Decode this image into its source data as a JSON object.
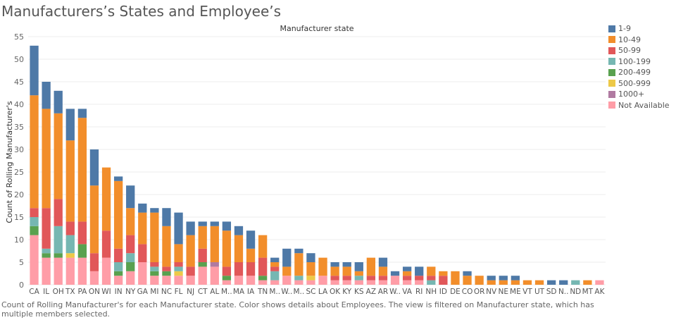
{
  "title": "Manufacturers’s States and Employee’s",
  "caption": "Count of Rolling Manufacturer's for each Manufacturer state.  Color shows details about Employees. The view is filtered on Manufacturer state, which has multiple members selected.",
  "chart_data": {
    "type": "bar",
    "stacked": true,
    "title": "Manufacturer state",
    "xlabel": "",
    "ylabel": "Count of Rolling Manufacturer's",
    "ylim": [
      0,
      55
    ],
    "yticks": [
      0,
      5,
      10,
      15,
      20,
      25,
      30,
      35,
      40,
      45,
      50,
      55
    ],
    "grid": true,
    "legend_position": "right",
    "categories": [
      "CA",
      "IL",
      "OH",
      "TX",
      "PA",
      "ON",
      "WI",
      "IN",
      "NY",
      "GA",
      "MI",
      "NC",
      "FL",
      "NJ",
      "CT",
      "AL",
      "M..",
      "MA",
      "IA",
      "TN",
      "M..",
      "W..",
      "M..",
      "SC",
      "LA",
      "OK",
      "KY",
      "KS",
      "AZ",
      "AR",
      "W..",
      "VA",
      "RI",
      "NH",
      "ID",
      "DE",
      "CO",
      "OR",
      "NV",
      "NE",
      "ME",
      "VT",
      "UT",
      "SD",
      "N..",
      "ND",
      "MT",
      "AK"
    ],
    "series": [
      {
        "name": "Not Available",
        "color": "#FF9DA7",
        "values": [
          11,
          6,
          6,
          6,
          6,
          3,
          6,
          2,
          3,
          5,
          2,
          2,
          2,
          2,
          4,
          4,
          1,
          2,
          2,
          1,
          1,
          2,
          1,
          1,
          2,
          1,
          1,
          1,
          1,
          1,
          2,
          1,
          1,
          0,
          0,
          0,
          0,
          0,
          0,
          0,
          0,
          0,
          0,
          0,
          0,
          0,
          0,
          1
        ]
      },
      {
        "name": "1000+",
        "color": "#B07AA1",
        "values": [
          0,
          0,
          0,
          0,
          0,
          0,
          0,
          0,
          0,
          0,
          0,
          0,
          0,
          0,
          0,
          1,
          0,
          0,
          0,
          0,
          0,
          0,
          0,
          0,
          0,
          0,
          0,
          0,
          0,
          0,
          0,
          0,
          0,
          0,
          0,
          0,
          0,
          0,
          0,
          0,
          0,
          0,
          0,
          0,
          0,
          0,
          0,
          0
        ]
      },
      {
        "name": "500-999",
        "color": "#EDC948",
        "values": [
          0,
          0,
          0,
          1,
          0,
          0,
          0,
          0,
          0,
          0,
          0,
          0,
          1,
          0,
          0,
          0,
          0,
          0,
          0,
          0,
          0,
          0,
          0,
          1,
          0,
          0,
          0,
          0,
          0,
          0,
          0,
          0,
          0,
          0,
          0,
          0,
          0,
          0,
          0,
          0,
          0,
          0,
          0,
          0,
          0,
          0,
          0,
          0
        ]
      },
      {
        "name": "200-499",
        "color": "#59A14F",
        "values": [
          2,
          1,
          1,
          0,
          3,
          0,
          0,
          1,
          2,
          0,
          1,
          1,
          0,
          0,
          1,
          0,
          1,
          0,
          0,
          1,
          0,
          0,
          0,
          0,
          0,
          0,
          0,
          0,
          0,
          0,
          0,
          0,
          0,
          0,
          0,
          0,
          0,
          0,
          0,
          0,
          0,
          0,
          0,
          0,
          0,
          0,
          0,
          0
        ]
      },
      {
        "name": "100-199",
        "color": "#76B7B2",
        "values": [
          2,
          1,
          6,
          4,
          0,
          0,
          0,
          2,
          2,
          0,
          1,
          0,
          1,
          0,
          0,
          0,
          0,
          0,
          0,
          0,
          2,
          0,
          1,
          0,
          0,
          0,
          0,
          1,
          0,
          0,
          0,
          0,
          0,
          1,
          0,
          0,
          0,
          0,
          0,
          0,
          0,
          0,
          0,
          0,
          0,
          1,
          0,
          0
        ]
      },
      {
        "name": "50-99",
        "color": "#E15759",
        "values": [
          2,
          9,
          6,
          3,
          5,
          4,
          6,
          3,
          4,
          4,
          1,
          1,
          1,
          2,
          3,
          0,
          2,
          3,
          3,
          4,
          1,
          0,
          0,
          0,
          0,
          1,
          1,
          0,
          1,
          1,
          0,
          1,
          1,
          1,
          2,
          0,
          0,
          0,
          0,
          0,
          0,
          0,
          0,
          0,
          0,
          0,
          0,
          0
        ]
      },
      {
        "name": "10-49",
        "color": "#F28E2B",
        "values": [
          25,
          22,
          19,
          18,
          23,
          15,
          14,
          15,
          6,
          7,
          11,
          9,
          4,
          7,
          5,
          8,
          8,
          6,
          3,
          5,
          1,
          2,
          5,
          3,
          4,
          2,
          2,
          1,
          4,
          2,
          0,
          1,
          0,
          2,
          1,
          3,
          2,
          2,
          1,
          1,
          1,
          1,
          1,
          0,
          0,
          0,
          1,
          0
        ]
      },
      {
        "name": "1-9",
        "color": "#4E79A7",
        "values": [
          11,
          6,
          5,
          7,
          2,
          8,
          0,
          1,
          5,
          2,
          1,
          4,
          7,
          3,
          1,
          1,
          2,
          2,
          4,
          0,
          1,
          4,
          1,
          2,
          0,
          1,
          1,
          2,
          0,
          2,
          1,
          1,
          2,
          0,
          0,
          0,
          1,
          0,
          1,
          1,
          1,
          0,
          0,
          1,
          1,
          0,
          0,
          0
        ]
      }
    ],
    "legend_order": [
      "1-9",
      "10-49",
      "50-99",
      "100-199",
      "200-499",
      "500-999",
      "1000+",
      "Not Available"
    ]
  }
}
